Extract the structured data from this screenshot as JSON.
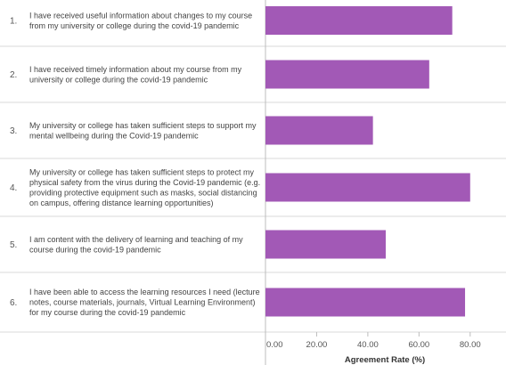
{
  "chart_data": {
    "type": "bar",
    "orientation": "horizontal",
    "categories": [
      {
        "number": "1.",
        "lines": [
          "I have received useful information about changes to my course",
          "from my university or college during the covid-19 pandemic"
        ]
      },
      {
        "number": "2.",
        "lines": [
          "I have received timely information about my course from my",
          "university or college during the covid-19 pandemic"
        ]
      },
      {
        "number": "3.",
        "lines": [
          "My university or college has taken sufficient steps to support my",
          "mental wellbeing during the Covid-19 pandemic"
        ]
      },
      {
        "number": "4.",
        "lines": [
          "My university or college has taken sufficient steps to protect my",
          "physical safety from the virus during the Covid-19 pandemic (e.g.",
          "providing protective equipment such as masks, social distancing",
          "on campus, offering distance learning opportunities)"
        ]
      },
      {
        "number": "5.",
        "lines": [
          "I am content with the delivery of learning and teaching of my",
          "course during the covid-19 pandemic"
        ]
      },
      {
        "number": "6.",
        "lines": [
          "I have been able to access the learning resources I need (lecture",
          "notes, course materials, journals, Virtual Learning Environment)",
          "for my course during the covid-19 pandemic"
        ]
      }
    ],
    "values": [
      73,
      64,
      42,
      80,
      47,
      78
    ],
    "xlabel": "Agreement Rate (%)",
    "ticks": [
      "0.00",
      "20.00",
      "40.00",
      "60.00",
      "80.00"
    ],
    "xlim": [
      0,
      94
    ],
    "bar_color": "#a259b6",
    "grid": false
  }
}
